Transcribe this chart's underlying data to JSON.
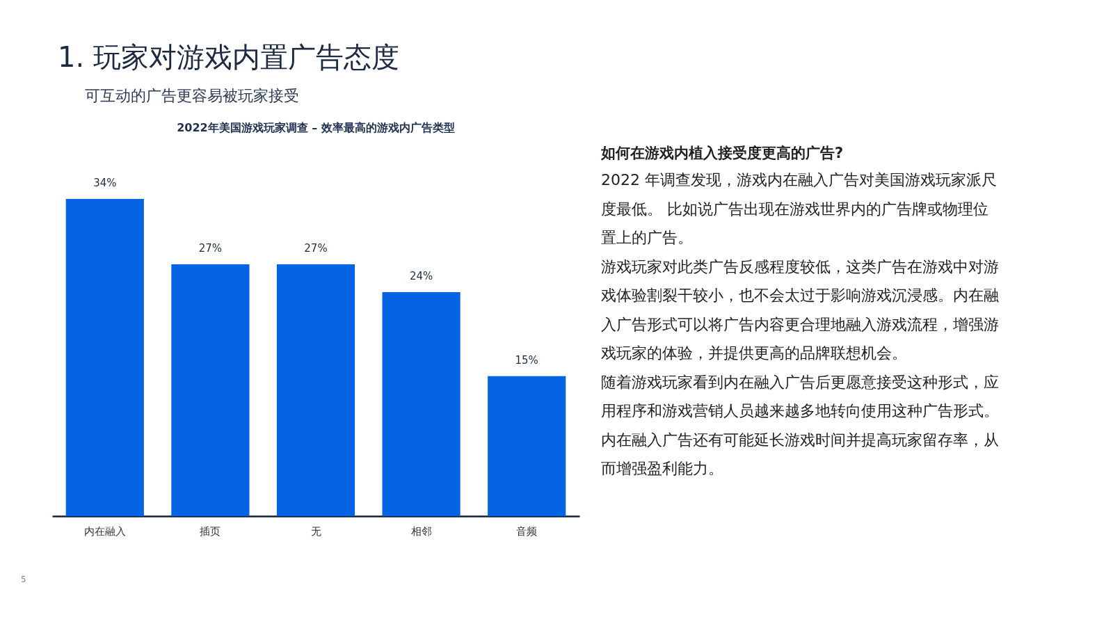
{
  "chart_data": {
    "type": "bar",
    "title": "1. 玩家对游戏内置广告态度",
    "subtitle": "可互动的广告更容易被玩家接受",
    "categories": [
      "内在融入",
      "插页",
      "无",
      "相邻",
      "音频"
    ],
    "values": [
      34,
      27,
      27,
      24,
      15
    ],
    "value_labels": [
      "34%",
      "27%",
      "27%",
      "24%",
      "15%"
    ],
    "color": "#0564e3",
    "annotations": [
      "2022年美国游戏玩家调查 – 效率最高的游戏内广告类型",
      "如何在游戏内植入接受度更高的广告?",
      "2022 年调查发现，游戏内在融入广告对美国游戏玩家派尺度最低。 比如说广告出现在游戏世界内的广告牌或物理位置上的广告。",
      "游戏玩家对此类广告反感程度较低，这类广告在游戏中对游戏体验割裂干较小，也不会太过于影响游戏沉浸感。内在融入广告形式可以将广告内容更合理地融入游戏流程，增强游戏玩家的体验，并提供更高的品牌联想机会。",
      "随着游戏玩家看到内在融入广告后更愿意接受这种形式，应用程序和游戏营销人员越来越多地转向使用这种广告形式。内在融入广告还有可能延长游戏时间并提高玩家留存率，从而增强盈利能力。",
      "5"
    ]
  }
}
